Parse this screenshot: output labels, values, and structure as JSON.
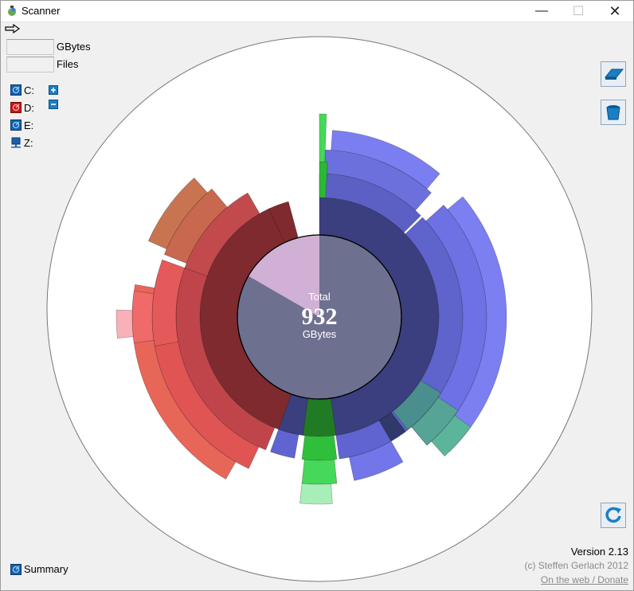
{
  "window": {
    "title": "Scanner",
    "minimize_glyph": "—",
    "maximize_glyph": "☐",
    "close_glyph": "✕"
  },
  "stats": {
    "gbytes_value": "",
    "gbytes_label": "GBytes",
    "files_value": "",
    "files_label": "Files"
  },
  "drives": [
    {
      "label": "C:",
      "color": "#1a5fa8"
    },
    {
      "label": "D:",
      "color": "#c41818"
    },
    {
      "label": "E:",
      "color": "#1a5fa8"
    },
    {
      "label": "Z:",
      "color": "#1a5fa8"
    }
  ],
  "center": {
    "top_label": "Total",
    "value": "932",
    "unit": "GBytes"
  },
  "footer": {
    "summary_label": "Summary",
    "version": "Version 2.13",
    "copyright": "(c) Steffen Gerlach 2012",
    "web_link": "On the web / Donate"
  },
  "icons": {
    "app": "scanner-app-icon",
    "arrow": "arrow-right-icon",
    "expand": "plus-icon",
    "collapse": "minus-icon",
    "eraser": "eraser-icon",
    "recycle_bin": "recycle-bin-icon",
    "refresh": "refresh-icon"
  }
}
